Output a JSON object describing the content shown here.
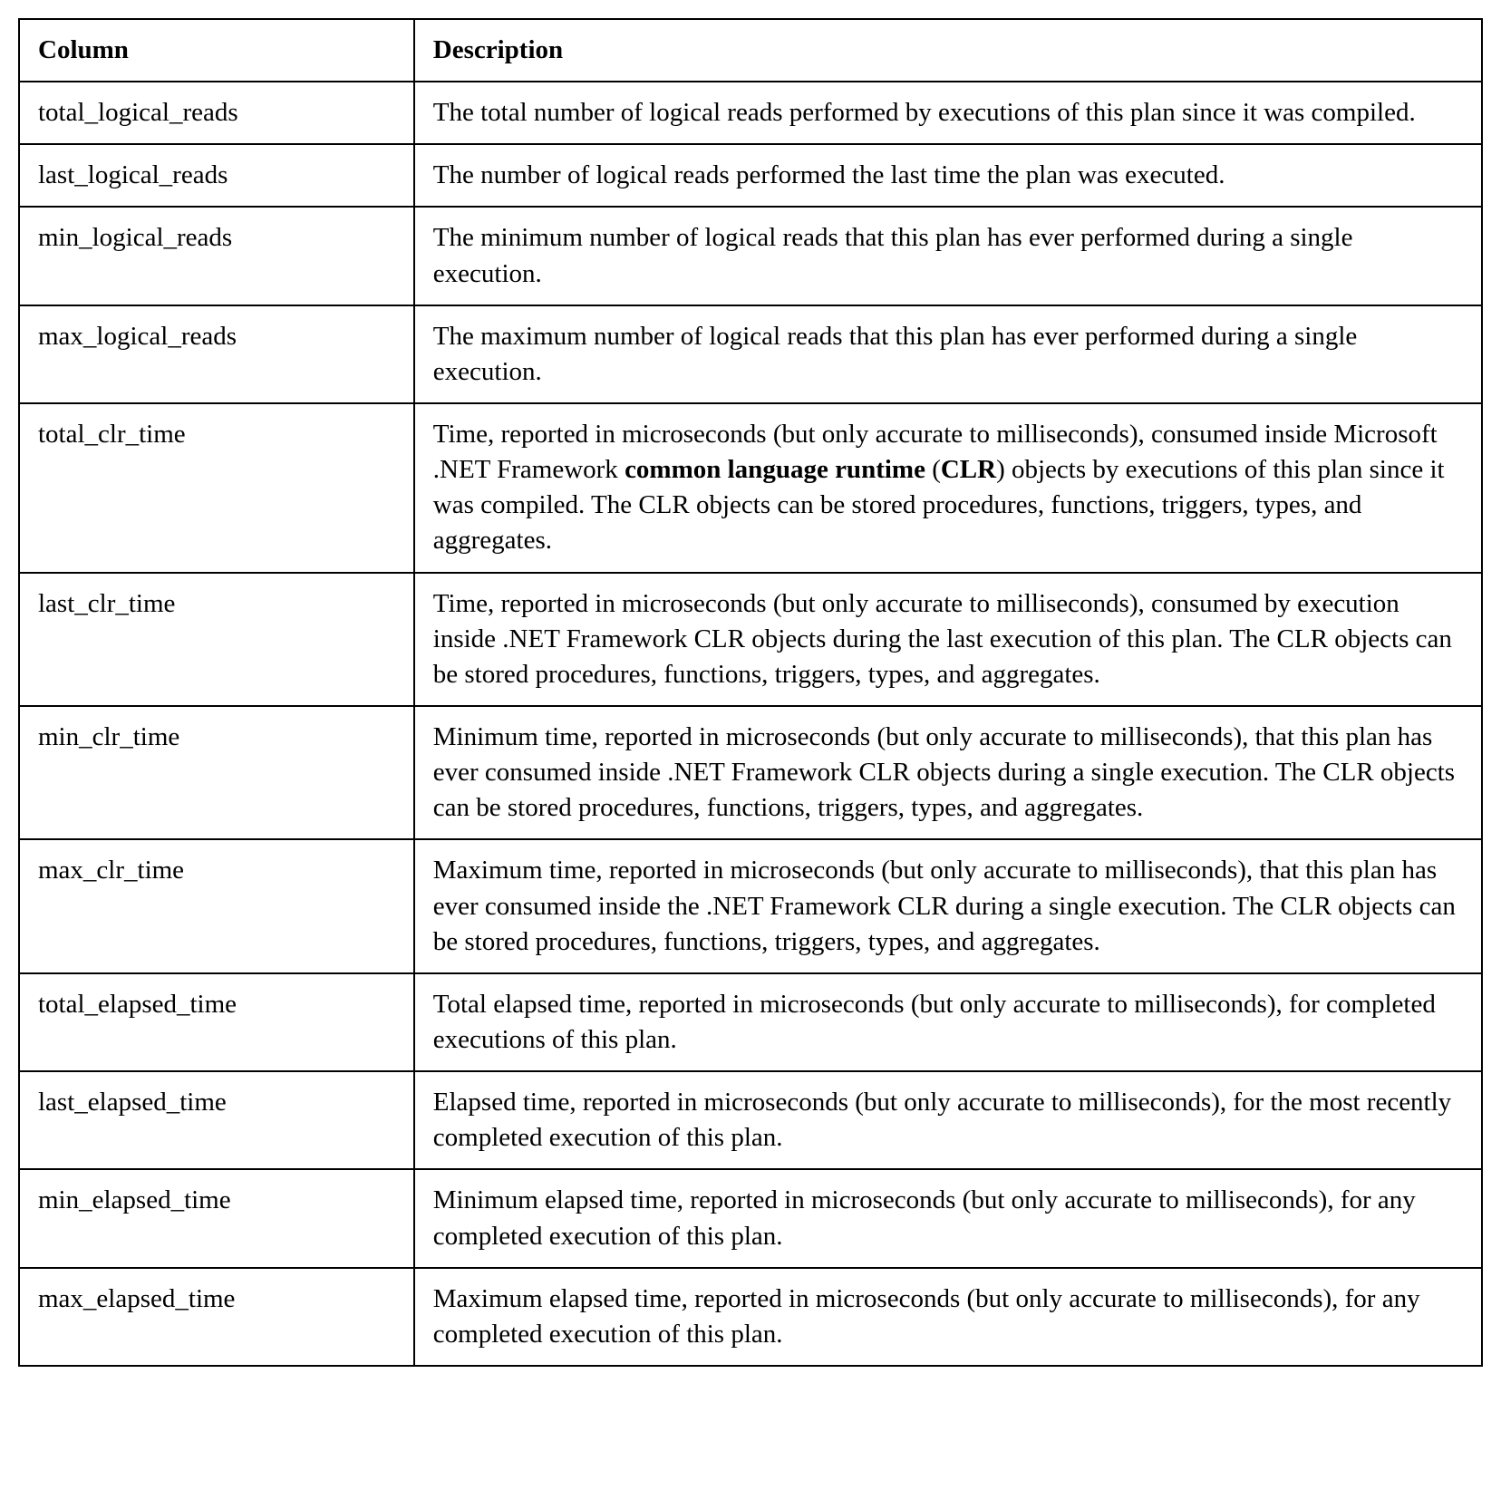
{
  "table": {
    "type": "table",
    "columns": [
      "Column",
      "Description"
    ],
    "column_widths": [
      "27%",
      "73%"
    ],
    "border_color": "#000000",
    "background_color": "#ffffff",
    "font_family": "Georgia, 'Times New Roman', serif",
    "header_fontsize": 29,
    "cell_fontsize": 29,
    "header_fontweight": "bold",
    "rows": [
      {
        "column": "total_logical_reads",
        "description": "The total number of logical reads performed by executions of this plan since it was compiled."
      },
      {
        "column": "last_logical_reads",
        "description": "The number of logical reads performed the last time the plan was executed."
      },
      {
        "column": "min_logical_reads",
        "description": "The minimum number of logical reads that this plan has ever performed during a single execution."
      },
      {
        "column": "max_logical_reads",
        "description": "The maximum number of logical reads that this plan has ever performed during a single execution."
      },
      {
        "column": "total_clr_time",
        "description_parts": [
          {
            "text": "Time, reported in microseconds (but only accurate to milliseconds), consumed inside Microsoft .NET Framework ",
            "bold": false
          },
          {
            "text": "common language runtime",
            "bold": true
          },
          {
            "text": " (",
            "bold": false
          },
          {
            "text": "CLR",
            "bold": true
          },
          {
            "text": ") objects by executions of this plan since it was compiled. The CLR objects can be stored procedures, functions, triggers, types, and aggregates.",
            "bold": false
          }
        ]
      },
      {
        "column": "last_clr_time",
        "description": "Time, reported in microseconds (but only accurate to milliseconds), consumed by execution inside .NET Framework CLR objects during the last execution of this plan. The CLR objects can be stored procedures, functions, triggers, types, and aggregates."
      },
      {
        "column": "min_clr_time",
        "description": "Minimum time, reported in microseconds (but only accurate to milliseconds), that this plan has ever consumed inside .NET Framework CLR objects during a single execution. The CLR objects can be stored procedures, functions, triggers, types, and aggregates."
      },
      {
        "column": "max_clr_time",
        "description": "Maximum time, reported in microseconds (but only accurate to milliseconds), that this plan has ever consumed inside the .NET Framework CLR during a single execution. The CLR objects can be stored procedures, functions, triggers, types, and aggregates."
      },
      {
        "column": "total_elapsed_time",
        "description": "Total elapsed time, reported in microseconds (but only accurate to milliseconds), for completed executions of this plan."
      },
      {
        "column": "last_elapsed_time",
        "description": "Elapsed time, reported in microseconds (but only accurate to milliseconds), for the most recently completed execution of this plan."
      },
      {
        "column": "min_elapsed_time",
        "description": "Minimum elapsed time, reported in microseconds (but only accurate to milliseconds), for any completed execution of this plan."
      },
      {
        "column": "max_elapsed_time",
        "description": "Maximum elapsed time, reported in microseconds (but only accurate to milliseconds), for any completed execution of this plan."
      }
    ]
  }
}
